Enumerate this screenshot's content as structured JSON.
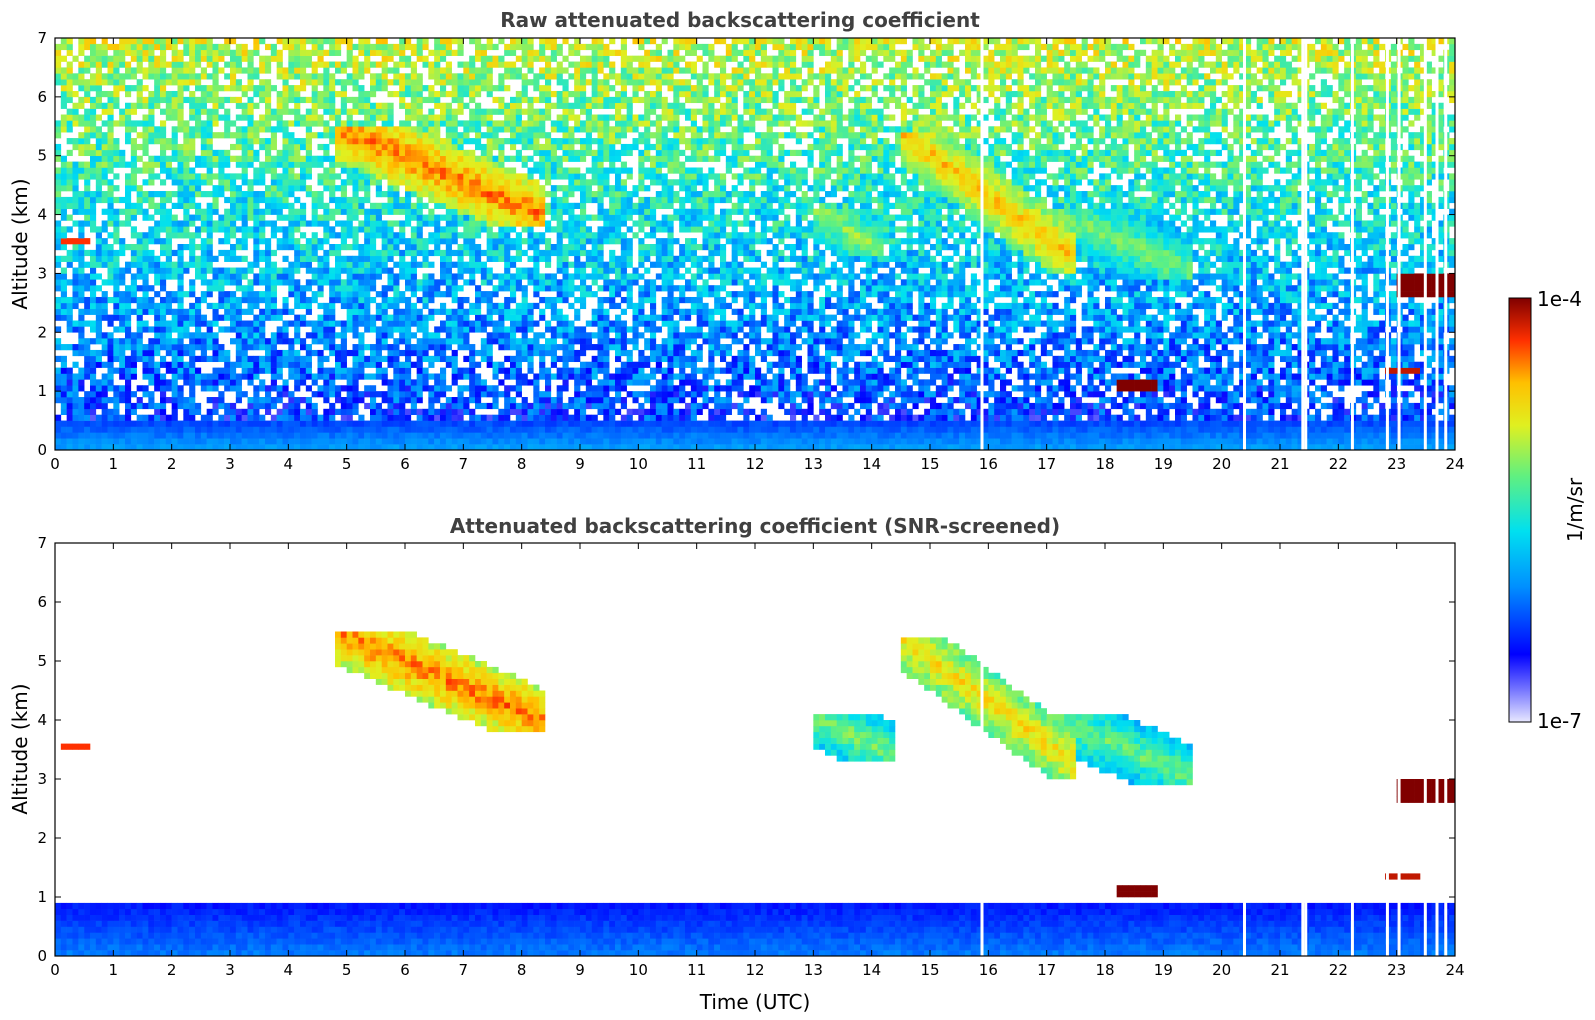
{
  "chart_data": [
    {
      "type": "heatmap",
      "title": "Raw attenuated backscattering coefficient",
      "xlabel": "",
      "ylabel": "Altitude (km)",
      "xlim": [
        0,
        24
      ],
      "ylim": [
        0,
        7
      ],
      "x_ticks": [
        "0",
        "1",
        "2",
        "3",
        "4",
        "5",
        "6",
        "7",
        "8",
        "9",
        "10",
        "11",
        "12",
        "13",
        "14",
        "15",
        "16",
        "17",
        "18",
        "19",
        "20",
        "21",
        "22",
        "23",
        "24"
      ],
      "y_ticks": [
        "0",
        "1",
        "2",
        "3",
        "4",
        "5",
        "6",
        "7"
      ],
      "grid": false,
      "data_gaps_hours": [
        15.9,
        20.4,
        21.4,
        21.45,
        22.25,
        22.85,
        23.05,
        23.5,
        23.7,
        23.85
      ],
      "features": [
        {
          "kind": "boundary-layer",
          "t_start": 0,
          "t_end": 24,
          "alt_bottom": 0,
          "alt_top": 0.5,
          "level": 0.35
        },
        {
          "kind": "elevated-cloud",
          "t_start": 4.8,
          "t_end": 8.4,
          "alt_bottom": 3.8,
          "alt_top": 5.5,
          "level": 0.85
        },
        {
          "kind": "elevated-cloud",
          "t_start": 14.5,
          "t_end": 17.5,
          "alt_bottom": 3.0,
          "alt_top": 5.4,
          "level": 0.78
        },
        {
          "kind": "elevated-cloud",
          "t_start": 13.0,
          "t_end": 14.2,
          "alt_bottom": 3.3,
          "alt_top": 4.1,
          "level": 0.62
        },
        {
          "kind": "elevated-cloud",
          "t_start": 17.0,
          "t_end": 19.5,
          "alt_bottom": 2.9,
          "alt_top": 4.1,
          "level": 0.6
        },
        {
          "kind": "low-cloud",
          "t_start": 18.2,
          "t_end": 18.9,
          "alt_bottom": 1.05,
          "alt_top": 1.2,
          "level": 1.0
        },
        {
          "kind": "low-cloud",
          "t_start": 23.0,
          "t_end": 24,
          "alt_bottom": 2.6,
          "alt_top": 3.0,
          "level": 1.0
        },
        {
          "kind": "low-cloud",
          "t_start": 22.8,
          "t_end": 23.4,
          "alt_bottom": 1.3,
          "alt_top": 1.45,
          "level": 0.95
        },
        {
          "kind": "thin-layer",
          "t_start": 0.1,
          "t_end": 0.6,
          "alt_bottom": 3.5,
          "alt_top": 3.6,
          "level": 0.9
        }
      ]
    },
    {
      "type": "heatmap",
      "title": "Attenuated backscattering coefficient (SNR-screened)",
      "xlabel": "Time (UTC)",
      "ylabel": "Altitude (km)",
      "xlim": [
        0,
        24
      ],
      "ylim": [
        0,
        7
      ],
      "x_ticks": [
        "0",
        "1",
        "2",
        "3",
        "4",
        "5",
        "6",
        "7",
        "8",
        "9",
        "10",
        "11",
        "12",
        "13",
        "14",
        "15",
        "16",
        "17",
        "18",
        "19",
        "20",
        "21",
        "22",
        "23",
        "24"
      ],
      "y_ticks": [
        "0",
        "1",
        "2",
        "3",
        "4",
        "5",
        "6",
        "7"
      ],
      "grid": false,
      "data_gaps_hours": [
        15.9,
        20.4,
        21.4,
        21.45,
        22.25,
        22.85,
        23.05,
        23.5,
        23.7,
        23.85
      ],
      "features": [
        {
          "kind": "boundary-layer",
          "t_start": 0,
          "t_end": 24,
          "alt_bottom": 0,
          "alt_top": 0.9,
          "level": 0.3
        },
        {
          "kind": "elevated-cloud",
          "t_start": 4.8,
          "t_end": 8.4,
          "alt_bottom": 3.8,
          "alt_top": 5.5,
          "level": 0.85
        },
        {
          "kind": "elevated-cloud",
          "t_start": 14.5,
          "t_end": 17.5,
          "alt_bottom": 3.0,
          "alt_top": 5.4,
          "level": 0.75
        },
        {
          "kind": "elevated-cloud",
          "t_start": 13.0,
          "t_end": 14.4,
          "alt_bottom": 3.3,
          "alt_top": 4.1,
          "level": 0.6
        },
        {
          "kind": "elevated-cloud",
          "t_start": 17.0,
          "t_end": 19.5,
          "alt_bottom": 2.9,
          "alt_top": 4.1,
          "level": 0.58
        },
        {
          "kind": "low-cloud",
          "t_start": 18.2,
          "t_end": 18.9,
          "alt_bottom": 1.05,
          "alt_top": 1.2,
          "level": 1.0
        },
        {
          "kind": "low-cloud",
          "t_start": 23.0,
          "t_end": 24,
          "alt_bottom": 2.6,
          "alt_top": 3.0,
          "level": 1.0
        },
        {
          "kind": "low-cloud",
          "t_start": 22.8,
          "t_end": 23.4,
          "alt_bottom": 1.3,
          "alt_top": 1.45,
          "level": 0.95
        },
        {
          "kind": "thin-layer",
          "t_start": 0.1,
          "t_end": 0.6,
          "alt_bottom": 3.5,
          "alt_top": 3.6,
          "level": 0.9
        }
      ]
    }
  ],
  "colorbar": {
    "label": "1/m/sr",
    "max_label": "1e-4",
    "min_label": "1e-7",
    "scale": "log"
  }
}
